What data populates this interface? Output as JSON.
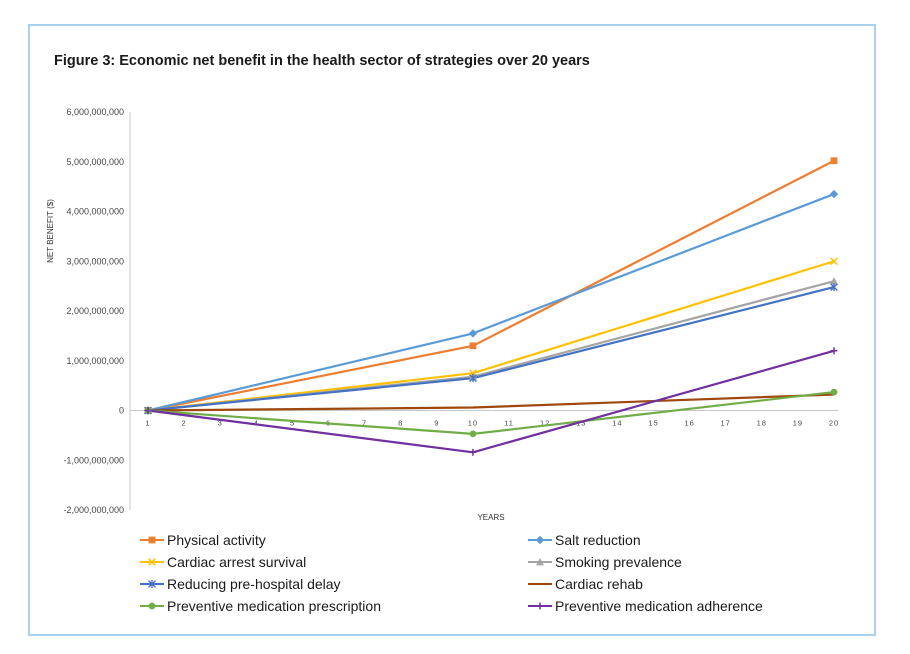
{
  "figure_title": "Figure 3: Economic net benefit in the health sector of strategies over 20 years",
  "chart_data": {
    "type": "line",
    "title": "Figure 3: Economic net benefit in the health sector of strategies over 20 years",
    "xlabel": "YEARS",
    "ylabel": "NET BENEFIT ($)",
    "x": [
      1,
      10,
      20
    ],
    "x_ticks": [
      1,
      2,
      3,
      4,
      5,
      6,
      7,
      8,
      9,
      10,
      11,
      12,
      13,
      14,
      15,
      16,
      17,
      18,
      19,
      20
    ],
    "x_tick_labels": [
      "1",
      "2",
      "3",
      "4",
      "5",
      "6",
      "7",
      "8",
      "9",
      "10",
      "11",
      "12",
      "13",
      "14",
      "15",
      "16",
      "17",
      "18",
      "19",
      "20"
    ],
    "xlim": [
      1,
      20
    ],
    "ylim": [
      -2000000000,
      6000000000
    ],
    "y_ticks": [
      6000000000,
      5000000000,
      4000000000,
      3000000000,
      2000000000,
      1000000000,
      0,
      -1000000000,
      -2000000000
    ],
    "y_tick_labels": [
      "6,000,000,000",
      "5,000,000,000",
      "4,000,000,000",
      "3,000,000,000",
      "2,000,000,000",
      "1,000,000,000",
      "0",
      "-1,000,000,000",
      "-2,000,000,000"
    ],
    "grid": false,
    "legend_position": "bottom",
    "series": [
      {
        "name": "Physical activity",
        "color": "#ed7d31",
        "marker": "square",
        "values": [
          0,
          1300000000,
          5020000000
        ]
      },
      {
        "name": "Salt reduction",
        "color": "#5b9bd5",
        "marker": "diamond",
        "values": [
          0,
          1550000000,
          4350000000
        ]
      },
      {
        "name": "Cardiac arrest survival",
        "color": "#ffc000",
        "marker": "x",
        "values": [
          0,
          750000000,
          3000000000
        ]
      },
      {
        "name": "Smoking prevalence",
        "color": "#a5a5a5",
        "marker": "triangle",
        "values": [
          0,
          680000000,
          2600000000
        ]
      },
      {
        "name": "Reducing pre-hospital delay",
        "color": "#4472c4",
        "marker": "asterisk",
        "values": [
          0,
          650000000,
          2480000000
        ]
      },
      {
        "name": "Cardiac rehab",
        "color": "#9e480e",
        "marker": "none",
        "values": [
          0,
          60000000,
          320000000
        ]
      },
      {
        "name": "Preventive medication prescription",
        "color": "#70ad47",
        "marker": "circle",
        "values": [
          0,
          -470000000,
          370000000
        ]
      },
      {
        "name": "Preventive medication adherence",
        "color": "#7030a0",
        "marker": "plus",
        "values": [
          0,
          -840000000,
          1200000000
        ]
      }
    ]
  }
}
